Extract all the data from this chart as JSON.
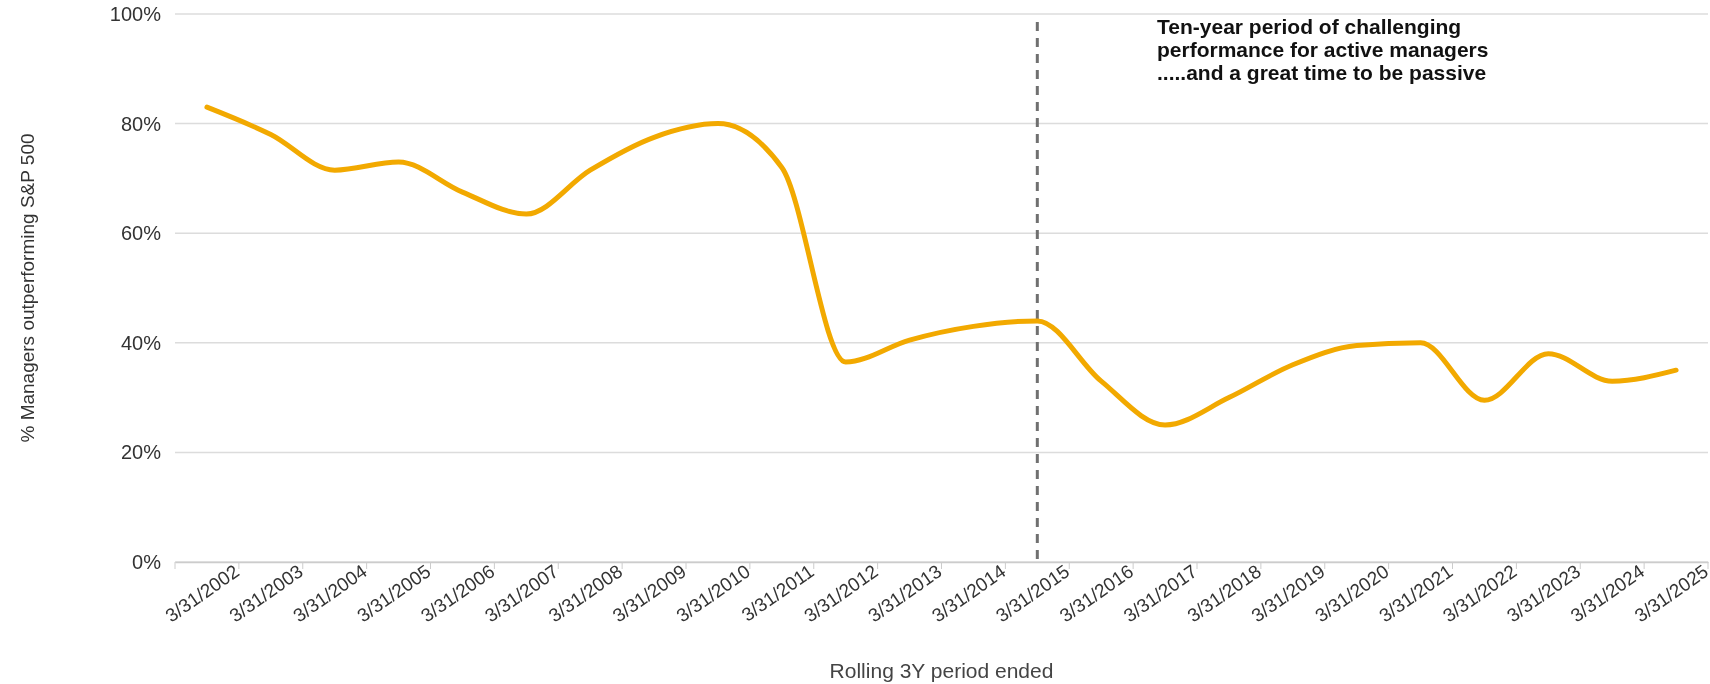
{
  "chart_data": {
    "type": "line",
    "xlabel": "Rolling 3Y period ended",
    "ylabel": "% Managers outperforming S&P 500",
    "categories": [
      "3/31/2002",
      "3/31/2003",
      "3/31/2004",
      "3/31/2005",
      "3/31/2006",
      "3/31/2007",
      "3/31/2008",
      "3/31/2009",
      "3/31/2010",
      "3/31/2011",
      "3/31/2012",
      "3/31/2013",
      "3/31/2014",
      "3/31/2015",
      "3/31/2016",
      "3/31/2017",
      "3/31/2018",
      "3/31/2019",
      "3/31/2020",
      "3/31/2021",
      "3/31/2022",
      "3/31/2023",
      "3/31/2024",
      "3/31/2025"
    ],
    "series": [
      {
        "color": "#f2a900",
        "values": [
          83,
          78,
          71.5,
          73,
          67.5,
          63.5,
          71.5,
          77.5,
          80,
          72,
          36.5,
          40.5,
          43,
          44,
          33,
          25,
          30,
          36,
          39.5,
          40,
          29.5,
          38,
          33,
          35
        ]
      }
    ],
    "ylim": [
      0,
      100
    ],
    "yticks": [
      {
        "value": 0,
        "label": "0%"
      },
      {
        "value": 20,
        "label": "20%"
      },
      {
        "value": 40,
        "label": "40%"
      },
      {
        "value": 60,
        "label": "60%"
      },
      {
        "value": 80,
        "label": "80%"
      },
      {
        "value": 100,
        "label": "100%"
      }
    ],
    "grid": "y",
    "marker": "none",
    "line_style": "solid",
    "ref_lines": [
      {
        "axis": "x",
        "value": "3/31/2015",
        "color": "#707070",
        "line_style": "dashed"
      }
    ],
    "annotations": [
      "Ten-year period of challenging\nperformance for active managers\n.....and a great time to be passive"
    ]
  }
}
